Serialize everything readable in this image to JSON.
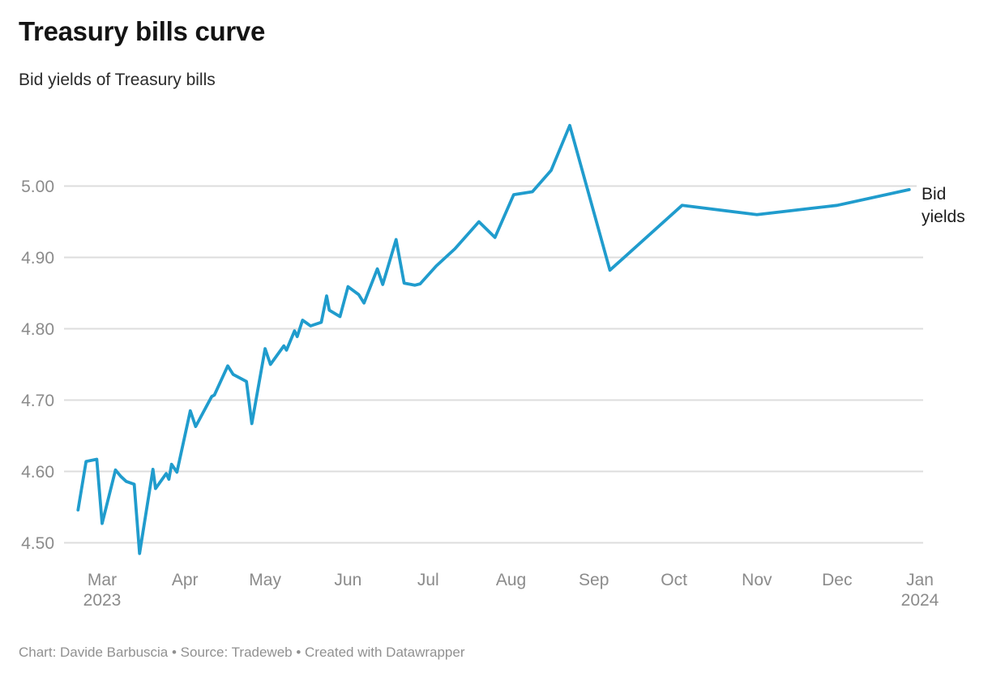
{
  "header": {
    "title": "Treasury bills curve",
    "subtitle": "Bid yields of Treasury bills"
  },
  "footer": {
    "text": "Chart: Davide Barbuscia • Source: Tradeweb • Created with Datawrapper"
  },
  "chart_data": {
    "type": "line",
    "title": "Treasury bills curve",
    "subtitle": "Bid yields of Treasury bills",
    "xlabel": "",
    "ylabel": "",
    "grid": true,
    "legend_position": "line-end-right",
    "ylim": [
      4.48,
      5.09
    ],
    "x_range": [
      "2023-02-20",
      "2023-12-28"
    ],
    "y_ticks": [
      5.0,
      4.9,
      4.8,
      4.7,
      4.6,
      4.5
    ],
    "x_ticks": [
      {
        "date": "2023-03-01",
        "label": "Mar",
        "sublabel": "2023"
      },
      {
        "date": "2023-04-01",
        "label": "Apr"
      },
      {
        "date": "2023-05-01",
        "label": "May"
      },
      {
        "date": "2023-06-01",
        "label": "Jun"
      },
      {
        "date": "2023-07-01",
        "label": "Jul"
      },
      {
        "date": "2023-08-01",
        "label": "Aug"
      },
      {
        "date": "2023-09-01",
        "label": "Sep"
      },
      {
        "date": "2023-10-01",
        "label": "Oct"
      },
      {
        "date": "2023-11-01",
        "label": "Nov"
      },
      {
        "date": "2023-12-01",
        "label": "Dec"
      },
      {
        "date": "2024-01-01",
        "label": "Jan",
        "sublabel": "2024"
      }
    ],
    "colors": {
      "line": "#209ccd",
      "grid": "#dddddd",
      "tick_label": "#8b8b8b",
      "series_label": "#1c1c1c"
    },
    "series": [
      {
        "name": "Bid yields",
        "label_lines": [
          "Bid",
          "yields"
        ],
        "color": "#209ccd",
        "points": [
          [
            "2023-02-20",
            4.546
          ],
          [
            "2023-02-23",
            4.614
          ],
          [
            "2023-02-27",
            4.617
          ],
          [
            "2023-03-01",
            4.527
          ],
          [
            "2023-03-06",
            4.602
          ],
          [
            "2023-03-08",
            4.593
          ],
          [
            "2023-03-10",
            4.586
          ],
          [
            "2023-03-13",
            4.582
          ],
          [
            "2023-03-15",
            4.485
          ],
          [
            "2023-03-20",
            4.603
          ],
          [
            "2023-03-21",
            4.576
          ],
          [
            "2023-03-25",
            4.597
          ],
          [
            "2023-03-26",
            4.589
          ],
          [
            "2023-03-27",
            4.61
          ],
          [
            "2023-03-29",
            4.599
          ],
          [
            "2023-04-03",
            4.685
          ],
          [
            "2023-04-05",
            4.663
          ],
          [
            "2023-04-11",
            4.705
          ],
          [
            "2023-04-12",
            4.707
          ],
          [
            "2023-04-17",
            4.748
          ],
          [
            "2023-04-19",
            4.736
          ],
          [
            "2023-04-22",
            4.73
          ],
          [
            "2023-04-24",
            4.726
          ],
          [
            "2023-04-26",
            4.667
          ],
          [
            "2023-05-01",
            4.772
          ],
          [
            "2023-05-03",
            4.75
          ],
          [
            "2023-05-08",
            4.776
          ],
          [
            "2023-05-09",
            4.77
          ],
          [
            "2023-05-12",
            4.797
          ],
          [
            "2023-05-13",
            4.789
          ],
          [
            "2023-05-15",
            4.812
          ],
          [
            "2023-05-18",
            4.804
          ],
          [
            "2023-05-22",
            4.809
          ],
          [
            "2023-05-24",
            4.846
          ],
          [
            "2023-05-25",
            4.826
          ],
          [
            "2023-05-29",
            4.817
          ],
          [
            "2023-06-01",
            4.859
          ],
          [
            "2023-06-05",
            4.848
          ],
          [
            "2023-06-07",
            4.836
          ],
          [
            "2023-06-12",
            4.884
          ],
          [
            "2023-06-14",
            4.862
          ],
          [
            "2023-06-19",
            4.925
          ],
          [
            "2023-06-22",
            4.864
          ],
          [
            "2023-06-26",
            4.861
          ],
          [
            "2023-06-28",
            4.863
          ],
          [
            "2023-07-04",
            4.888
          ],
          [
            "2023-07-11",
            4.912
          ],
          [
            "2023-07-20",
            4.95
          ],
          [
            "2023-07-26",
            4.928
          ],
          [
            "2023-08-02",
            4.988
          ],
          [
            "2023-08-09",
            4.992
          ],
          [
            "2023-08-16",
            5.022
          ],
          [
            "2023-08-23",
            5.085
          ],
          [
            "2023-09-07",
            4.882
          ],
          [
            "2023-10-04",
            4.973
          ],
          [
            "2023-11-01",
            4.96
          ],
          [
            "2023-12-01",
            4.973
          ],
          [
            "2023-12-28",
            4.995
          ]
        ]
      }
    ]
  }
}
